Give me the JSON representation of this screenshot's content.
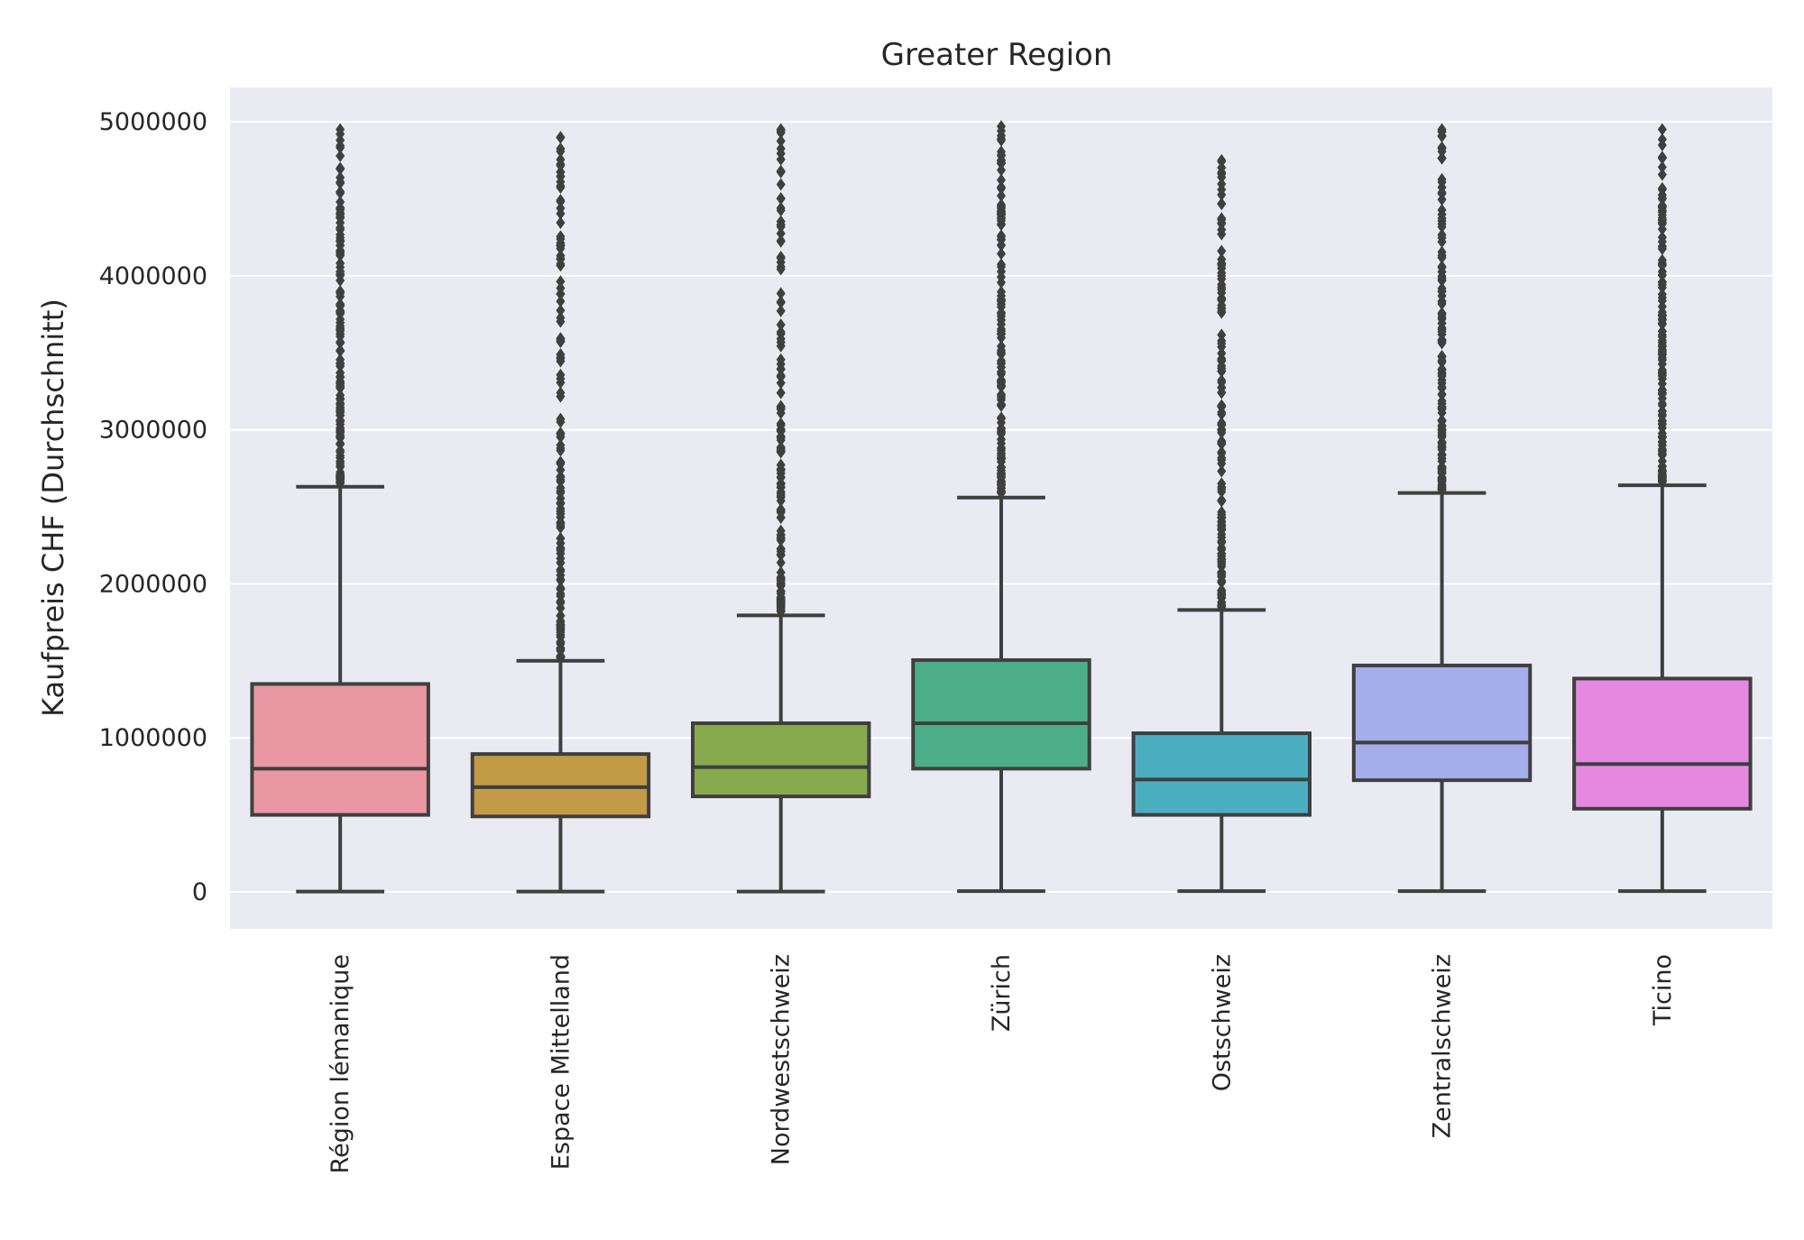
{
  "chart_data": {
    "type": "boxplot",
    "title": "Greater Region",
    "xlabel": "",
    "ylabel": "Kaufpreis CHF (Durchschnitt)",
    "ylim": [
      -250000,
      5230000
    ],
    "yticks": [
      0,
      1000000,
      2000000,
      3000000,
      4000000,
      5000000
    ],
    "ytick_labels": [
      "0",
      "1000000",
      "2000000",
      "3000000",
      "4000000",
      "5000000"
    ],
    "grid": true,
    "categories": [
      "Région lémanique",
      "Espace Mittelland",
      "Nordwestschweiz",
      "Zürich",
      "Ostschweiz",
      "Zentralschweiz",
      "Ticino"
    ],
    "colors": [
      "#ea96a3",
      "#c39a46",
      "#87aa4e",
      "#4cae8b",
      "#4badc0",
      "#a3aeea",
      "#e688e0"
    ],
    "edge_color": "#3f3f3f",
    "background_color": "#eaeaf2",
    "boxes": [
      {
        "whisker_low": 2000,
        "q1": 500000,
        "median": 800000,
        "q3": 1350000,
        "whisker_high": 2630000,
        "outlier_min": 2650000,
        "outlier_max": 4950000
      },
      {
        "whisker_low": 2000,
        "q1": 490000,
        "median": 680000,
        "q3": 895000,
        "whisker_high": 1500000,
        "outlier_min": 1520000,
        "outlier_max": 4900000
      },
      {
        "whisker_low": 2000,
        "q1": 620000,
        "median": 810000,
        "q3": 1095000,
        "whisker_high": 1795000,
        "outlier_min": 1820000,
        "outlier_max": 4950000
      },
      {
        "whisker_low": 5000,
        "q1": 800000,
        "median": 1095000,
        "q3": 1505000,
        "whisker_high": 2560000,
        "outlier_min": 2590000,
        "outlier_max": 4970000
      },
      {
        "whisker_low": 5000,
        "q1": 500000,
        "median": 730000,
        "q3": 1030000,
        "whisker_high": 1830000,
        "outlier_min": 1850000,
        "outlier_max": 4750000
      },
      {
        "whisker_low": 5000,
        "q1": 725000,
        "median": 970000,
        "q3": 1470000,
        "whisker_high": 2590000,
        "outlier_min": 2610000,
        "outlier_max": 4950000
      },
      {
        "whisker_low": 5000,
        "q1": 540000,
        "median": 830000,
        "q3": 1385000,
        "whisker_high": 2640000,
        "outlier_min": 2660000,
        "outlier_max": 4950000
      }
    ]
  }
}
